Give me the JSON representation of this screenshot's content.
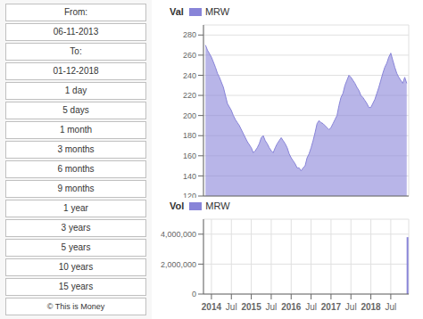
{
  "chart_data": [
    {
      "type": "area",
      "title": "Val",
      "x": [
        2013.85,
        2013.9,
        2014.0,
        2014.1,
        2014.15,
        2014.2,
        2014.3,
        2014.35,
        2014.4,
        2014.5,
        2014.55,
        2014.6,
        2014.65,
        2014.7,
        2014.8,
        2014.9,
        2015.0,
        2015.05,
        2015.1,
        2015.15,
        2015.2,
        2015.25,
        2015.3,
        2015.35,
        2015.4,
        2015.45,
        2015.5,
        2015.55,
        2015.6,
        2015.65,
        2015.7,
        2015.75,
        2015.8,
        2015.85,
        2015.9,
        2015.95,
        2016.0,
        2016.05,
        2016.1,
        2016.15,
        2016.2,
        2016.25,
        2016.3,
        2016.35,
        2016.4,
        2016.45,
        2016.5,
        2016.55,
        2016.6,
        2016.65,
        2016.7,
        2016.75,
        2016.8,
        2016.85,
        2016.9,
        2016.95,
        2017.0,
        2017.05,
        2017.1,
        2017.15,
        2017.2,
        2017.25,
        2017.3,
        2017.35,
        2017.4,
        2017.45,
        2017.5,
        2017.55,
        2017.6,
        2017.65,
        2017.7,
        2017.75,
        2017.8,
        2017.85,
        2017.9,
        2017.95,
        2018.0,
        2018.05,
        2018.1,
        2018.15,
        2018.2,
        2018.25,
        2018.3,
        2018.35,
        2018.4,
        2018.45,
        2018.5,
        2018.55,
        2018.6,
        2018.65,
        2018.7,
        2018.75,
        2018.8,
        2018.85,
        2018.9
      ],
      "series": [
        {
          "name": "MRW",
          "values": [
            270,
            265,
            258,
            248,
            242,
            238,
            228,
            220,
            212,
            205,
            200,
            196,
            193,
            190,
            182,
            174,
            168,
            163,
            165,
            168,
            172,
            178,
            180,
            175,
            172,
            168,
            165,
            163,
            168,
            172,
            175,
            178,
            175,
            172,
            168,
            162,
            158,
            155,
            152,
            148,
            148,
            145,
            148,
            150,
            158,
            162,
            168,
            175,
            183,
            192,
            195,
            193,
            192,
            190,
            188,
            186,
            188,
            192,
            196,
            200,
            210,
            218,
            222,
            230,
            235,
            240,
            238,
            235,
            232,
            228,
            225,
            220,
            218,
            215,
            212,
            208,
            208,
            212,
            216,
            222,
            228,
            235,
            242,
            248,
            252,
            258,
            262,
            255,
            248,
            242,
            238,
            235,
            232,
            238,
            232
          ]
        }
      ],
      "xlim": [
        2013.8,
        2018.95
      ],
      "xticks": [
        2014,
        {
          "value": 2014.5,
          "label": "Jul"
        },
        2015,
        {
          "value": 2015.5,
          "label": "Jul"
        },
        2016,
        {
          "value": 2016.5,
          "label": "Jul"
        },
        2017,
        {
          "value": 2017.5,
          "label": "Jul"
        },
        2018,
        {
          "value": 2018.5,
          "label": "Jul"
        }
      ],
      "ylim": [
        120,
        290
      ],
      "yticks": [
        120,
        140,
        160,
        180,
        200,
        220,
        240,
        260,
        280
      ],
      "grid": true,
      "legend": "top",
      "tick_labels": "y",
      "annotations": [
        "From:",
        "06-11-2013",
        "To:",
        "01-12-2018",
        "1 day",
        "5 days",
        "1 month",
        "3 months",
        "6 months",
        "9 months",
        "1 year",
        "3 years",
        "5 years",
        "10 years",
        "15 years",
        "© This is Money"
      ]
    },
    {
      "type": "bar",
      "title": "Vol",
      "x": [
        2018.92
      ],
      "series": [
        {
          "name": "MRW",
          "values": [
            3800000
          ]
        }
      ],
      "xlim": [
        2013.8,
        2018.95
      ],
      "xticks": [
        2014,
        {
          "value": 2014.5,
          "label": "Jul"
        },
        2015,
        {
          "value": 2015.5,
          "label": "Jul"
        },
        2016,
        {
          "value": 2016.5,
          "label": "Jul"
        },
        2017,
        {
          "value": 2017.5,
          "label": "Jul"
        },
        2018,
        {
          "value": 2018.5,
          "label": "Jul"
        }
      ],
      "ylim": [
        0,
        5000000
      ],
      "yticks": [
        0,
        {
          "value": 2000000,
          "label": "2,000,000"
        },
        {
          "value": 4000000,
          "label": "4,000,000"
        }
      ],
      "grid": true,
      "legend": "top"
    }
  ]
}
